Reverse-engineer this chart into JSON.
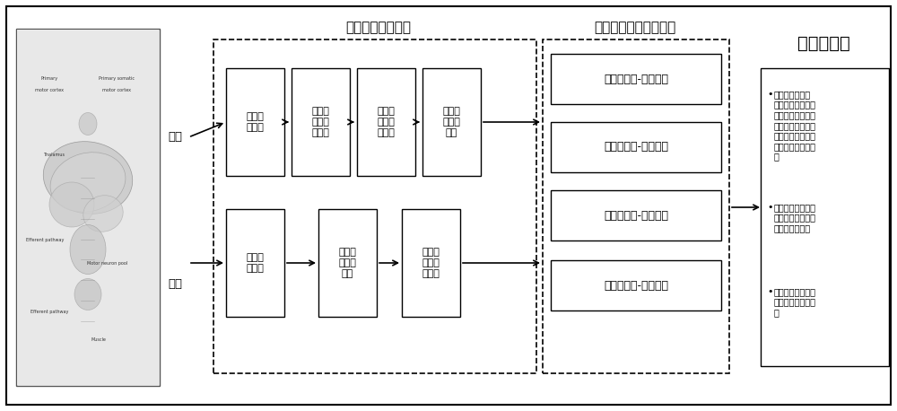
{
  "bg_color": "#ffffff",
  "border_color": "#000000",
  "title_preprocessing": "脑肌电信号预处理",
  "title_coupling": "脑肌异频耦合特征分析",
  "title_correlation": "相关性分析",
  "label_eeg": "脑电",
  "label_emg": "肌电",
  "eeg_boxes": [
    "去除基\n线漂移",
    "去除工\n频及谐\n波干扰",
    "去除眼\n动及头\n功干扰",
    "获取有\n效脑电\n信号"
  ],
  "emg_boxes": [
    "去除基\n线漂移",
    "去除直\n流高频\n干扰",
    "对肌电\n信号进\n行校正"
  ],
  "coupling_boxes": [
    "脑肌电相位-相位耦合",
    "脑肌电相位-幅度耦合",
    "脑肌电频率-幅度耦合",
    "脑肌电频率-频率耦合"
  ],
  "corr_title": "相关性分析",
  "corr_bullet1": "采用频繁模式树\n算法分析频率频率\n耦合、相位相位耦\n合、频率振幅耦合\n以及相位振幅耦合\n特征值之间的关联\n性",
  "corr_bullet2": "分析随着采集部位\n变化，上述指标是\n否仍具有关联性",
  "corr_bullet3": "通过上述相关性分\n析实现运动功能检\n测",
  "xlim": [
    0,
    10
  ],
  "ylim": [
    0,
    4.58
  ]
}
